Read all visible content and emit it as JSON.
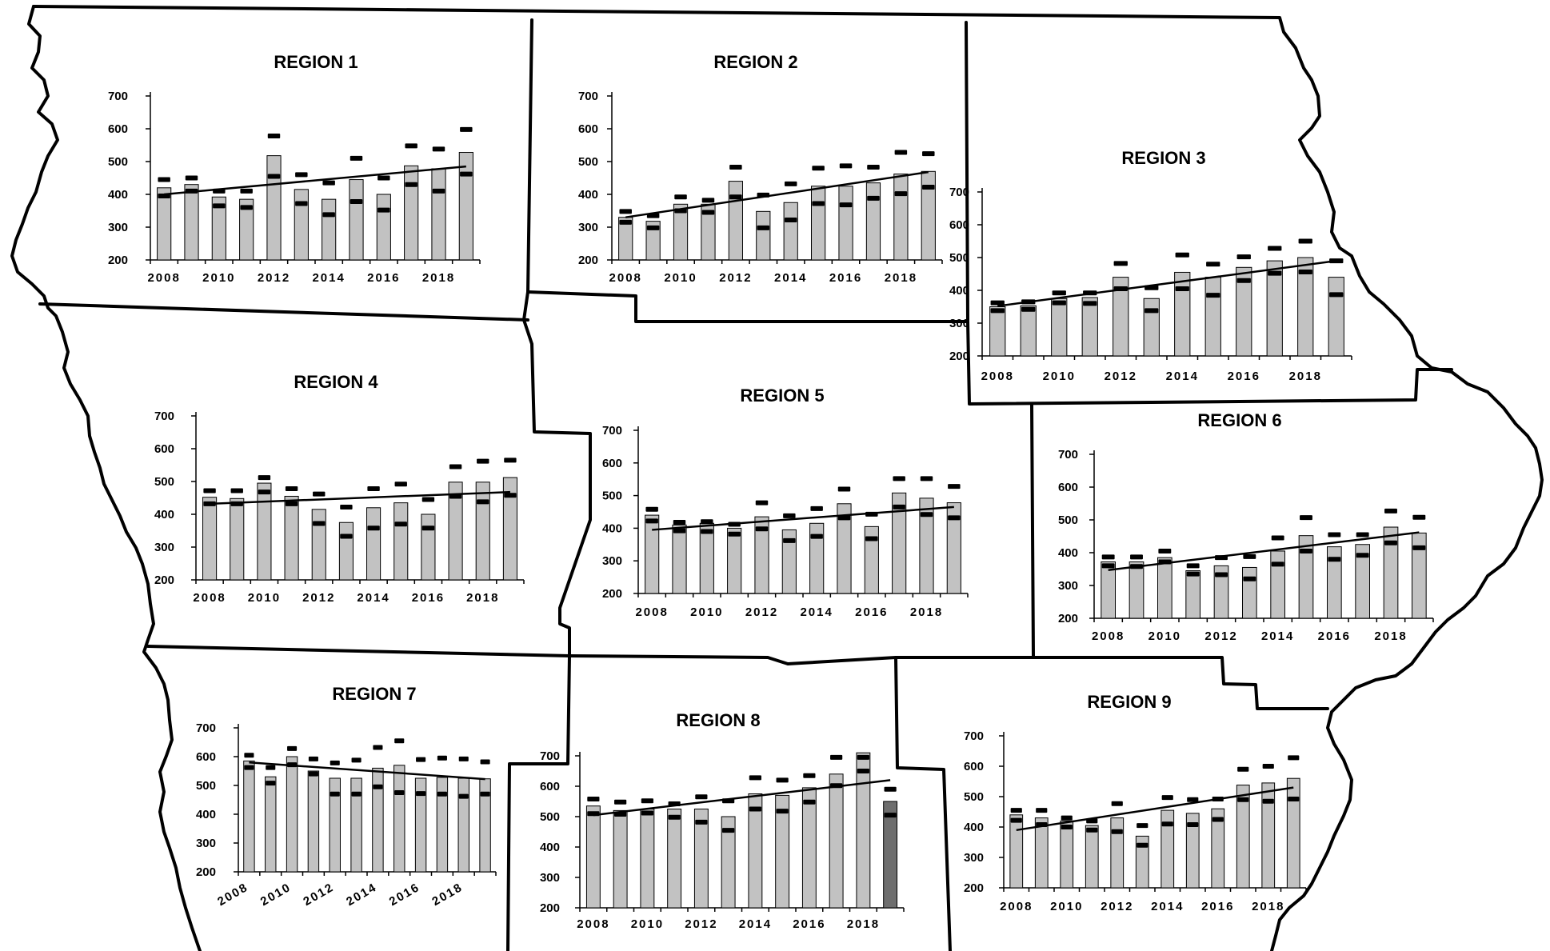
{
  "chart_data": [
    {
      "type": "bar",
      "title": "REGION 1",
      "x": [
        2008,
        2009,
        2010,
        2011,
        2012,
        2013,
        2014,
        2015,
        2016,
        2017,
        2018,
        2019
      ],
      "xticks": [
        "2008",
        "2010",
        "2012",
        "2014",
        "2016",
        "2018"
      ],
      "yticks": [
        "200",
        "300",
        "400",
        "500",
        "600",
        "700"
      ],
      "ylim": [
        200,
        700
      ],
      "values": [
        420,
        430,
        392,
        385,
        518,
        415,
        385,
        445,
        400,
        487,
        478,
        528
      ],
      "upper": [
        445,
        450,
        410,
        410,
        578,
        460,
        435,
        510,
        450,
        548,
        538,
        598
      ],
      "lower": [
        395,
        410,
        365,
        360,
        455,
        372,
        338,
        378,
        352,
        430,
        410,
        462
      ],
      "trend": [
        400,
        485
      ]
    },
    {
      "type": "bar",
      "title": "REGION 2",
      "x": [
        2008,
        2009,
        2010,
        2011,
        2012,
        2013,
        2014,
        2015,
        2016,
        2017,
        2018,
        2019
      ],
      "xticks": [
        "2008",
        "2010",
        "2012",
        "2014",
        "2016",
        "2018"
      ],
      "yticks": [
        "200",
        "300",
        "400",
        "500",
        "600",
        "700"
      ],
      "ylim": [
        200,
        700
      ],
      "values": [
        330,
        318,
        370,
        370,
        440,
        348,
        375,
        425,
        425,
        435,
        462,
        470
      ],
      "upper": [
        348,
        335,
        392,
        382,
        483,
        398,
        432,
        480,
        487,
        483,
        528,
        524
      ],
      "lower": [
        315,
        298,
        350,
        345,
        392,
        298,
        322,
        372,
        368,
        388,
        402,
        422
      ],
      "trend": [
        330,
        468
      ]
    },
    {
      "type": "bar",
      "title": "REGION 3",
      "x": [
        2008,
        2009,
        2010,
        2011,
        2012,
        2013,
        2014,
        2015,
        2016,
        2017,
        2018,
        2019
      ],
      "xticks": [
        "2008",
        "2010",
        "2012",
        "2014",
        "2016",
        "2018"
      ],
      "yticks": [
        "200",
        "300",
        "400",
        "500",
        "600",
        "700"
      ],
      "ylim": [
        200,
        700
      ],
      "values": [
        350,
        353,
        375,
        378,
        440,
        375,
        455,
        440,
        470,
        490,
        500,
        440
      ],
      "upper": [
        362,
        365,
        392,
        392,
        482,
        408,
        508,
        480,
        502,
        528,
        550,
        490
      ],
      "lower": [
        338,
        342,
        362,
        360,
        405,
        338,
        405,
        385,
        430,
        452,
        456,
        387
      ],
      "trend": [
        352,
        490
      ]
    },
    {
      "type": "bar",
      "title": "REGION 4",
      "x": [
        2008,
        2009,
        2010,
        2011,
        2012,
        2013,
        2014,
        2015,
        2016,
        2017,
        2018,
        2019
      ],
      "xticks": [
        "2008",
        "2010",
        "2012",
        "2014",
        "2016",
        "2018"
      ],
      "yticks": [
        "200",
        "300",
        "400",
        "500",
        "600",
        "700"
      ],
      "ylim": [
        200,
        700
      ],
      "values": [
        452,
        448,
        495,
        455,
        415,
        375,
        420,
        435,
        400,
        498,
        498,
        512
      ],
      "upper": [
        472,
        472,
        512,
        478,
        462,
        422,
        478,
        492,
        445,
        545,
        562,
        565
      ],
      "lower": [
        432,
        432,
        468,
        432,
        372,
        333,
        358,
        370,
        358,
        455,
        438,
        458
      ],
      "trend": [
        432,
        468
      ]
    },
    {
      "type": "bar",
      "title": "REGION 5",
      "x": [
        2008,
        2009,
        2010,
        2011,
        2012,
        2013,
        2014,
        2015,
        2016,
        2017,
        2018,
        2019
      ],
      "xticks": [
        "2008",
        "2010",
        "2012",
        "2014",
        "2016",
        "2018"
      ],
      "yticks": [
        "200",
        "300",
        "400",
        "500",
        "600",
        "700"
      ],
      "ylim": [
        200,
        700
      ],
      "values": [
        440,
        410,
        415,
        400,
        435,
        395,
        415,
        475,
        405,
        508,
        492,
        478
      ],
      "upper": [
        458,
        418,
        420,
        412,
        478,
        438,
        460,
        520,
        443,
        552,
        552,
        528
      ],
      "lower": [
        422,
        392,
        390,
        382,
        398,
        362,
        375,
        432,
        368,
        465,
        442,
        432
      ],
      "trend": [
        395,
        465
      ]
    },
    {
      "type": "bar",
      "title": "REGION 6",
      "x": [
        2008,
        2009,
        2010,
        2011,
        2012,
        2013,
        2014,
        2015,
        2016,
        2017,
        2018,
        2019
      ],
      "xticks": [
        "2008",
        "2010",
        "2012",
        "2014",
        "2016",
        "2018"
      ],
      "yticks": [
        "200",
        "300",
        "400",
        "500",
        "600",
        "700"
      ],
      "ylim": [
        200,
        700
      ],
      "values": [
        372,
        372,
        385,
        345,
        360,
        355,
        405,
        452,
        418,
        425,
        478,
        460
      ],
      "upper": [
        387,
        387,
        405,
        360,
        385,
        388,
        445,
        507,
        455,
        455,
        527,
        508
      ],
      "lower": [
        360,
        358,
        372,
        335,
        333,
        320,
        365,
        405,
        380,
        392,
        430,
        415
      ],
      "trend": [
        347,
        462
      ]
    },
    {
      "type": "bar",
      "title": "REGION 7",
      "x": [
        2008,
        2009,
        2010,
        2011,
        2012,
        2013,
        2014,
        2015,
        2016,
        2017,
        2018,
        2019
      ],
      "xticks": [
        "2008",
        "2010",
        "2012",
        "2014",
        "2016",
        "2018"
      ],
      "yticks": [
        "200",
        "300",
        "400",
        "500",
        "600",
        "700"
      ],
      "ylim": [
        200,
        700
      ],
      "values": [
        585,
        530,
        600,
        550,
        525,
        525,
        560,
        570,
        525,
        528,
        525,
        523
      ],
      "upper": [
        605,
        562,
        628,
        592,
        578,
        588,
        632,
        655,
        590,
        595,
        592,
        582
      ],
      "lower": [
        562,
        508,
        572,
        540,
        470,
        470,
        495,
        475,
        472,
        470,
        462,
        470
      ],
      "trend": [
        580,
        522
      ]
    },
    {
      "type": "bar",
      "title": "REGION 8",
      "x": [
        2008,
        2009,
        2010,
        2011,
        2012,
        2013,
        2014,
        2015,
        2016,
        2017,
        2018,
        2019
      ],
      "xticks": [
        "2008",
        "2010",
        "2012",
        "2014",
        "2016",
        "2018"
      ],
      "yticks": [
        "200",
        "300",
        "400",
        "500",
        "600",
        "700"
      ],
      "ylim": [
        200,
        700
      ],
      "values": [
        535,
        520,
        525,
        525,
        525,
        500,
        575,
        570,
        595,
        640,
        710,
        550
      ],
      "upper": [
        558,
        548,
        552,
        542,
        565,
        552,
        628,
        620,
        635,
        695,
        695,
        590
      ],
      "lower": [
        510,
        508,
        512,
        498,
        482,
        455,
        525,
        518,
        548,
        602,
        650,
        505
      ],
      "trend": [
        505,
        620
      ],
      "highlight_index": 11
    },
    {
      "type": "bar",
      "title": "REGION 9",
      "x": [
        2008,
        2009,
        2010,
        2011,
        2012,
        2013,
        2014,
        2015,
        2016,
        2017,
        2018,
        2019
      ],
      "xticks": [
        "2008",
        "2010",
        "2012",
        "2014",
        "2016",
        "2018"
      ],
      "yticks": [
        "200",
        "300",
        "400",
        "500",
        "600",
        "700"
      ],
      "ylim": [
        200,
        700
      ],
      "values": [
        440,
        430,
        420,
        405,
        430,
        370,
        455,
        445,
        460,
        538,
        545,
        560
      ],
      "upper": [
        455,
        455,
        430,
        420,
        477,
        405,
        497,
        490,
        492,
        590,
        600,
        628
      ],
      "lower": [
        422,
        408,
        400,
        390,
        385,
        340,
        410,
        408,
        425,
        490,
        485,
        492
      ],
      "trend": [
        390,
        530
      ]
    }
  ]
}
